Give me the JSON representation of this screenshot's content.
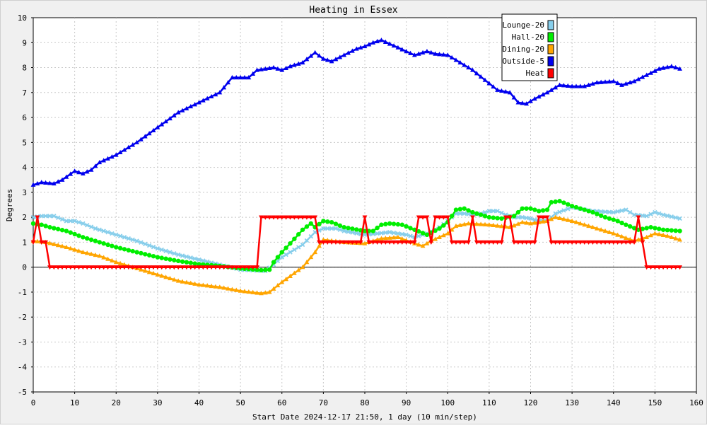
{
  "chart_data": {
    "type": "line",
    "title": "Heating in Essex",
    "xlabel": "Start Date 2024-12-17 21:50, 1 day (10 min/step)",
    "ylabel": "Degrees",
    "xlim": [
      0,
      160
    ],
    "ylim": [
      -5,
      10
    ],
    "xticks": [
      0,
      10,
      20,
      30,
      40,
      50,
      60,
      70,
      80,
      90,
      100,
      110,
      120,
      130,
      140,
      150,
      160
    ],
    "yticks": [
      -5,
      -4,
      -3,
      -2,
      -1,
      0,
      1,
      2,
      3,
      4,
      5,
      6,
      7,
      8,
      9,
      10
    ],
    "grid": true,
    "legend_position": "top-right",
    "series": [
      {
        "name": "Lounge-20",
        "color": "#87ceeb",
        "marker": "x",
        "points": [
          [
            0,
            2.0
          ],
          [
            2,
            2.05
          ],
          [
            5,
            2.05
          ],
          [
            8,
            1.85
          ],
          [
            10,
            1.85
          ],
          [
            12,
            1.75
          ],
          [
            15,
            1.55
          ],
          [
            20,
            1.3
          ],
          [
            25,
            1.05
          ],
          [
            30,
            0.75
          ],
          [
            35,
            0.5
          ],
          [
            40,
            0.3
          ],
          [
            45,
            0.1
          ],
          [
            50,
            -0.1
          ],
          [
            56,
            -0.15
          ],
          [
            58,
            0.1
          ],
          [
            60,
            0.4
          ],
          [
            65,
            0.9
          ],
          [
            68,
            1.4
          ],
          [
            70,
            1.55
          ],
          [
            73,
            1.55
          ],
          [
            75,
            1.45
          ],
          [
            80,
            1.3
          ],
          [
            83,
            1.35
          ],
          [
            86,
            1.4
          ],
          [
            90,
            1.3
          ],
          [
            92,
            1.2
          ],
          [
            95,
            1.35
          ],
          [
            98,
            1.6
          ],
          [
            100,
            1.85
          ],
          [
            102,
            2.15
          ],
          [
            104,
            2.15
          ],
          [
            106,
            2.1
          ],
          [
            108,
            2.15
          ],
          [
            110,
            2.25
          ],
          [
            112,
            2.25
          ],
          [
            114,
            2.1
          ],
          [
            116,
            2.0
          ],
          [
            118,
            2.0
          ],
          [
            120,
            1.95
          ],
          [
            122,
            1.85
          ],
          [
            124,
            1.85
          ],
          [
            126,
            2.15
          ],
          [
            130,
            2.4
          ],
          [
            135,
            2.25
          ],
          [
            140,
            2.2
          ],
          [
            143,
            2.3
          ],
          [
            145,
            2.1
          ],
          [
            148,
            2.05
          ],
          [
            150,
            2.2
          ],
          [
            152,
            2.1
          ],
          [
            156,
            1.95
          ]
        ]
      },
      {
        "name": "Hall-20",
        "color": "#00ee00",
        "marker": "circle",
        "points": [
          [
            0,
            1.75
          ],
          [
            2,
            1.7
          ],
          [
            4,
            1.6
          ],
          [
            8,
            1.45
          ],
          [
            12,
            1.2
          ],
          [
            16,
            1.0
          ],
          [
            20,
            0.8
          ],
          [
            25,
            0.6
          ],
          [
            30,
            0.4
          ],
          [
            35,
            0.25
          ],
          [
            40,
            0.12
          ],
          [
            45,
            0.05
          ],
          [
            50,
            -0.05
          ],
          [
            55,
            -0.12
          ],
          [
            57,
            -0.1
          ],
          [
            58,
            0.2
          ],
          [
            60,
            0.6
          ],
          [
            62,
            0.95
          ],
          [
            65,
            1.5
          ],
          [
            67,
            1.75
          ],
          [
            68,
            1.6
          ],
          [
            70,
            1.85
          ],
          [
            72,
            1.8
          ],
          [
            75,
            1.6
          ],
          [
            80,
            1.45
          ],
          [
            82,
            1.45
          ],
          [
            84,
            1.7
          ],
          [
            86,
            1.75
          ],
          [
            89,
            1.7
          ],
          [
            92,
            1.5
          ],
          [
            95,
            1.3
          ],
          [
            98,
            1.55
          ],
          [
            100,
            1.8
          ],
          [
            102,
            2.3
          ],
          [
            104,
            2.35
          ],
          [
            106,
            2.2
          ],
          [
            110,
            2.0
          ],
          [
            113,
            1.95
          ],
          [
            116,
            2.05
          ],
          [
            118,
            2.35
          ],
          [
            120,
            2.35
          ],
          [
            122,
            2.25
          ],
          [
            124,
            2.3
          ],
          [
            125,
            2.6
          ],
          [
            127,
            2.65
          ],
          [
            130,
            2.45
          ],
          [
            135,
            2.2
          ],
          [
            138,
            2.0
          ],
          [
            141,
            1.85
          ],
          [
            143,
            1.7
          ],
          [
            146,
            1.5
          ],
          [
            149,
            1.6
          ],
          [
            152,
            1.5
          ],
          [
            156,
            1.45
          ]
        ]
      },
      {
        "name": "Dining-20",
        "color": "#ffa500",
        "marker": "triangle",
        "points": [
          [
            0,
            1.05
          ],
          [
            3,
            1.0
          ],
          [
            8,
            0.8
          ],
          [
            12,
            0.6
          ],
          [
            16,
            0.45
          ],
          [
            20,
            0.2
          ],
          [
            25,
            -0.05
          ],
          [
            30,
            -0.3
          ],
          [
            35,
            -0.55
          ],
          [
            40,
            -0.7
          ],
          [
            45,
            -0.8
          ],
          [
            50,
            -0.95
          ],
          [
            55,
            -1.05
          ],
          [
            57,
            -1.0
          ],
          [
            60,
            -0.6
          ],
          [
            65,
            0.0
          ],
          [
            68,
            0.6
          ],
          [
            70,
            1.1
          ],
          [
            75,
            1.0
          ],
          [
            80,
            0.95
          ],
          [
            82,
            1.05
          ],
          [
            84,
            1.15
          ],
          [
            88,
            1.2
          ],
          [
            92,
            0.95
          ],
          [
            94,
            0.85
          ],
          [
            96,
            1.05
          ],
          [
            98,
            1.2
          ],
          [
            100,
            1.35
          ],
          [
            102,
            1.65
          ],
          [
            105,
            1.75
          ],
          [
            110,
            1.7
          ],
          [
            115,
            1.6
          ],
          [
            118,
            1.8
          ],
          [
            120,
            1.75
          ],
          [
            124,
            1.85
          ],
          [
            126,
            2.0
          ],
          [
            130,
            1.85
          ],
          [
            135,
            1.6
          ],
          [
            140,
            1.35
          ],
          [
            145,
            1.05
          ],
          [
            148,
            1.2
          ],
          [
            150,
            1.35
          ],
          [
            153,
            1.25
          ],
          [
            156,
            1.1
          ]
        ]
      },
      {
        "name": "Outside-5",
        "color": "#0000ee",
        "marker": "triangle",
        "points": [
          [
            0,
            3.3
          ],
          [
            2,
            3.4
          ],
          [
            5,
            3.35
          ],
          [
            7,
            3.5
          ],
          [
            10,
            3.85
          ],
          [
            12,
            3.75
          ],
          [
            14,
            3.9
          ],
          [
            16,
            4.2
          ],
          [
            20,
            4.5
          ],
          [
            25,
            5.0
          ],
          [
            30,
            5.6
          ],
          [
            35,
            6.2
          ],
          [
            40,
            6.6
          ],
          [
            45,
            7.0
          ],
          [
            48,
            7.6
          ],
          [
            52,
            7.6
          ],
          [
            54,
            7.9
          ],
          [
            58,
            8.0
          ],
          [
            60,
            7.9
          ],
          [
            62,
            8.05
          ],
          [
            65,
            8.2
          ],
          [
            68,
            8.6
          ],
          [
            70,
            8.35
          ],
          [
            72,
            8.25
          ],
          [
            75,
            8.5
          ],
          [
            78,
            8.75
          ],
          [
            80,
            8.85
          ],
          [
            82,
            9.0
          ],
          [
            84,
            9.1
          ],
          [
            86,
            8.95
          ],
          [
            88,
            8.8
          ],
          [
            90,
            8.65
          ],
          [
            92,
            8.5
          ],
          [
            95,
            8.65
          ],
          [
            97,
            8.55
          ],
          [
            100,
            8.5
          ],
          [
            103,
            8.2
          ],
          [
            106,
            7.9
          ],
          [
            109,
            7.5
          ],
          [
            112,
            7.1
          ],
          [
            115,
            7.0
          ],
          [
            117,
            6.6
          ],
          [
            119,
            6.55
          ],
          [
            121,
            6.75
          ],
          [
            124,
            7.0
          ],
          [
            127,
            7.3
          ],
          [
            130,
            7.25
          ],
          [
            133,
            7.25
          ],
          [
            136,
            7.4
          ],
          [
            140,
            7.45
          ],
          [
            142,
            7.3
          ],
          [
            145,
            7.45
          ],
          [
            148,
            7.7
          ],
          [
            151,
            7.95
          ],
          [
            154,
            8.05
          ],
          [
            156,
            7.95
          ]
        ]
      },
      {
        "name": "Heat",
        "color": "#ff0000",
        "marker": "triangle-down",
        "points": [
          [
            0,
            1
          ],
          [
            1,
            2
          ],
          [
            2,
            1
          ],
          [
            3,
            1
          ],
          [
            4,
            0
          ],
          [
            54,
            0
          ],
          [
            55,
            2
          ],
          [
            68,
            2
          ],
          [
            69,
            1
          ],
          [
            79,
            1
          ],
          [
            80,
            2
          ],
          [
            81,
            1
          ],
          [
            92,
            1
          ],
          [
            93,
            2
          ],
          [
            95,
            2
          ],
          [
            96,
            1
          ],
          [
            97,
            2
          ],
          [
            100,
            2
          ],
          [
            101,
            1
          ],
          [
            105,
            1
          ],
          [
            106,
            2
          ],
          [
            107,
            1
          ],
          [
            113,
            1
          ],
          [
            114,
            2
          ],
          [
            115,
            2
          ],
          [
            116,
            1
          ],
          [
            121,
            1
          ],
          [
            122,
            2
          ],
          [
            124,
            2
          ],
          [
            125,
            1
          ],
          [
            145,
            1
          ],
          [
            146,
            2
          ],
          [
            147,
            1
          ],
          [
            148,
            0
          ],
          [
            156,
            0
          ]
        ]
      }
    ]
  }
}
